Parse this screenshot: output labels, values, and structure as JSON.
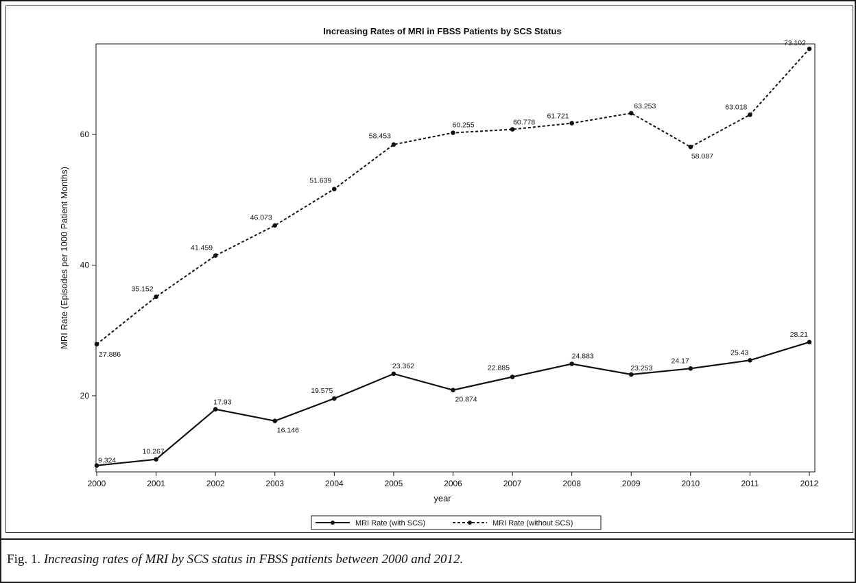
{
  "chart_data": {
    "type": "line",
    "title": "Increasing Rates of MRI in FBSS Patients by SCS Status",
    "xlabel": "year",
    "ylabel": "MRI Rate (Episodes per 1000 Patient Months)",
    "x": [
      "2000",
      "2001",
      "2002",
      "2003",
      "2004",
      "2005",
      "2006",
      "2007",
      "2008",
      "2009",
      "2010",
      "2011",
      "2012"
    ],
    "y_ticks": [
      "20",
      "40",
      "60"
    ],
    "ylim": [
      8,
      74.5
    ],
    "grid": false,
    "legend_position": "bottom",
    "series": [
      {
        "name": "MRI Rate (with SCS)",
        "line_style": "solid",
        "values": [
          9.324,
          10.267,
          17.93,
          16.146,
          19.575,
          23.362,
          20.874,
          22.885,
          24.883,
          23.253,
          24.17,
          25.43,
          28.21
        ],
        "labels": [
          "9.324",
          "10.267",
          "17.93",
          "16.146",
          "19.575",
          "23.362",
          "20.874",
          "22.885",
          "24.883",
          "23.253",
          "24.17",
          "25.43",
          "28.21"
        ]
      },
      {
        "name": "MRI Rate (without SCS)",
        "line_style": "dashed",
        "values": [
          27.886,
          35.152,
          41.459,
          46.073,
          51.639,
          58.453,
          60.255,
          60.778,
          61.721,
          63.253,
          58.087,
          63.018,
          73.102
        ],
        "labels": [
          "27.886",
          "35.152",
          "41.459",
          "46.073",
          "51.639",
          "58.453",
          "60.255",
          "60.778",
          "61.721",
          "63.253",
          "58.087",
          "63.018",
          "73.102"
        ]
      }
    ]
  },
  "caption": {
    "prefix": "Fig. 1.",
    "text": "Increasing rates of  MRI by SCS status in FBSS patients between 2000 and 2012."
  },
  "colors": {
    "line": "#111111",
    "frame": "#1a1a1a"
  }
}
